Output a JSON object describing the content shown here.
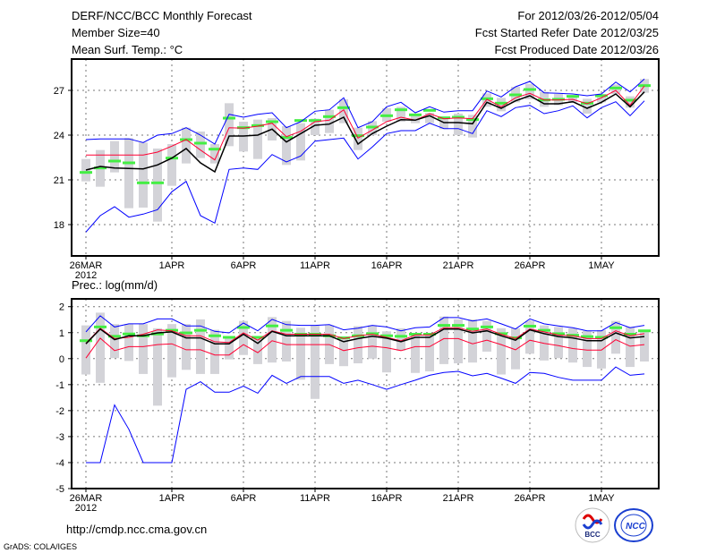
{
  "header": {
    "title": "DERF/NCC/BCC Monthly Forecast",
    "member_size": "Member Size=40",
    "variable": "Mean Surf. Temp.: °C",
    "period": "For 2012/03/26-2012/05/04",
    "started": "Fcst Started Refer Date 2012/03/25",
    "produced": "Fcst Produced Date 2012/03/26"
  },
  "footer": {
    "url": "http://cmdp.ncc.cma.gov.cn",
    "credit": "GrADS: COLA/IGES",
    "logo_bcc": "BCC",
    "logo_ncc": "NCC"
  },
  "colors": {
    "envelope": "#0000ff",
    "mean_band": "#ff0033",
    "ensemble_mean": "#000000",
    "median": "#44ee44",
    "range_bar": "#d3d3d8"
  },
  "chart_data": [
    {
      "type": "line",
      "title": "Mean Surf. Temp.: °C",
      "ylabel": "°C",
      "x_start": "2012-03-26",
      "days": 40,
      "xlim": [
        -1,
        40
      ],
      "ylim": [
        15.9,
        29.1
      ],
      "yticks": [
        18,
        21,
        24,
        27
      ],
      "xticks": [
        {
          "day": 0,
          "label": "26MAR",
          "sub": "2012"
        },
        {
          "day": 6,
          "label": "1APR"
        },
        {
          "day": 11,
          "label": "6APR"
        },
        {
          "day": 16,
          "label": "11APR"
        },
        {
          "day": 21,
          "label": "16APR"
        },
        {
          "day": 26,
          "label": "21APR"
        },
        {
          "day": 31,
          "label": "26APR"
        },
        {
          "day": 36,
          "label": "1MAY"
        }
      ],
      "grid": true,
      "series": [
        {
          "name": "range_high",
          "values": [
            22.4,
            23.0,
            23.6,
            23.8,
            23.5,
            23.1,
            23.4,
            24.5,
            24.24,
            23.4,
            26.14,
            24.9,
            25.04,
            25.14,
            24.6,
            24.8,
            25.1,
            25.7,
            26.4,
            24.5,
            24.94,
            25.8,
            25.9,
            25.44,
            25.5,
            25.2,
            25.44,
            25.36,
            26.8,
            26.5,
            27.24,
            27.44,
            26.9,
            26.76,
            26.6,
            26.44,
            26.76,
            27.4,
            26.6,
            27.76
          ]
        },
        {
          "name": "range_low",
          "values": [
            20.9,
            20.54,
            21.5,
            19.1,
            19.14,
            18.2,
            20.6,
            22.1,
            22.46,
            22.1,
            23.26,
            22.9,
            22.4,
            23.64,
            22.0,
            22.3,
            24.0,
            24.14,
            24.8,
            23.0,
            24.0,
            24.9,
            24.9,
            24.8,
            24.8,
            24.4,
            24.0,
            23.84,
            25.9,
            25.6,
            26.2,
            26.4,
            25.9,
            26.0,
            26.2,
            25.44,
            26.2,
            26.76,
            25.84,
            26.84
          ]
        },
        {
          "name": "blue_upper",
          "values": [
            23.7,
            23.75,
            23.75,
            23.75,
            23.5,
            24.0,
            24.1,
            24.5,
            24.0,
            23.4,
            25.4,
            25.2,
            25.4,
            25.5,
            24.5,
            24.9,
            25.6,
            25.7,
            26.5,
            24.5,
            24.9,
            25.9,
            26.2,
            25.5,
            25.9,
            25.54,
            25.64,
            25.64,
            26.96,
            26.56,
            27.24,
            27.6,
            26.84,
            26.8,
            26.76,
            26.64,
            26.76,
            27.56,
            26.9,
            27.76
          ]
        },
        {
          "name": "blue_lower",
          "values": [
            17.5,
            18.6,
            19.2,
            18.5,
            18.7,
            19.0,
            20.2,
            20.9,
            18.6,
            18.1,
            21.7,
            21.8,
            21.7,
            22.7,
            22.2,
            22.6,
            23.6,
            23.7,
            23.8,
            22.4,
            23.2,
            24.1,
            24.3,
            24.3,
            24.8,
            24.44,
            24.44,
            24.1,
            25.64,
            25.24,
            25.84,
            26.0,
            25.44,
            25.64,
            25.96,
            25.16,
            25.84,
            26.24,
            25.3,
            26.3
          ]
        },
        {
          "name": "red",
          "values": [
            22.66,
            22.66,
            22.66,
            22.66,
            22.66,
            22.86,
            23.26,
            23.7,
            23.0,
            22.34,
            24.5,
            24.46,
            24.6,
            24.8,
            23.9,
            24.26,
            24.9,
            25.0,
            25.7,
            23.8,
            24.34,
            24.9,
            25.2,
            25.0,
            25.44,
            25.1,
            25.16,
            25.1,
            26.4,
            25.9,
            26.5,
            26.8,
            26.36,
            26.36,
            26.4,
            26.1,
            26.5,
            27.0,
            26.0,
            27.3
          ]
        },
        {
          "name": "black",
          "values": [
            21.66,
            21.9,
            21.8,
            21.76,
            21.74,
            22.0,
            22.46,
            23.1,
            22.14,
            21.54,
            23.94,
            23.94,
            24.0,
            24.4,
            23.54,
            24.1,
            24.66,
            24.74,
            25.2,
            23.4,
            24.1,
            24.6,
            25.04,
            25.0,
            25.3,
            24.84,
            24.84,
            24.76,
            26.2,
            25.8,
            26.3,
            26.64,
            26.1,
            26.1,
            26.24,
            25.8,
            26.2,
            26.76,
            25.9,
            26.9
          ]
        },
        {
          "name": "green",
          "values": [
            21.5,
            21.8,
            22.26,
            22.14,
            20.8,
            20.8,
            22.46,
            23.7,
            23.46,
            23.06,
            25.14,
            24.5,
            24.64,
            24.9,
            23.84,
            24.98,
            24.98,
            25.24,
            25.84,
            23.96,
            24.54,
            25.3,
            25.7,
            25.36,
            25.66,
            25.16,
            25.2,
            25.04,
            26.44,
            26.14,
            26.7,
            27.06,
            26.36,
            26.4,
            26.6,
            26.14,
            26.64,
            27.16,
            26.34,
            27.32
          ]
        }
      ]
    },
    {
      "type": "line",
      "title": "Prec.: log(mm/d)",
      "ylabel": "log(mm/d)",
      "x_start": "2012-03-26",
      "days": 40,
      "xlim": [
        -1,
        40
      ],
      "ylim": [
        -5,
        2.3
      ],
      "yticks": [
        -5,
        -4,
        -3,
        -2,
        -1,
        0,
        1,
        2
      ],
      "xticks": [
        {
          "day": 0,
          "label": "26MAR",
          "sub": "2012"
        },
        {
          "day": 6,
          "label": "1APR"
        },
        {
          "day": 11,
          "label": "6APR"
        },
        {
          "day": 16,
          "label": "11APR"
        },
        {
          "day": 21,
          "label": "16APR"
        },
        {
          "day": 26,
          "label": "21APR"
        },
        {
          "day": 31,
          "label": "26APR"
        },
        {
          "day": 36,
          "label": "1MAY"
        }
      ],
      "grid": true,
      "series": [
        {
          "name": "range_high",
          "values": [
            1.28,
            1.77,
            1.33,
            1.33,
            1.33,
            1.17,
            1.33,
            1.33,
            1.51,
            1.11,
            0.82,
            1.45,
            0.82,
            1.6,
            1.45,
            1.19,
            1.28,
            1.28,
            0.77,
            1.25,
            1.28,
            1.05,
            1.17,
            0.99,
            0.99,
            1.62,
            1.51,
            1.51,
            1.45,
            1.17,
            1.17,
            1.45,
            1.28,
            1.22,
            1.17,
            1.07,
            1.1,
            1.45,
            1.22,
            1.11
          ]
        },
        {
          "name": "range_low",
          "values": [
            -0.61,
            -0.93,
            0.02,
            -0.09,
            -0.59,
            -1.81,
            -0.72,
            -0.43,
            -0.59,
            -0.59,
            -0.03,
            0.14,
            -0.21,
            -0.15,
            -0.11,
            -0.81,
            -1.55,
            -0.21,
            -0.29,
            -0.18,
            0,
            -0.53,
            0.31,
            -0.55,
            -0.49,
            -0.21,
            -0.18,
            -0.15,
            0.27,
            -0.61,
            -0.41,
            0.19,
            -0.07,
            0.02,
            -0.15,
            -0.32,
            -0.38,
            0.19,
            -0.32,
            -0.11
          ]
        },
        {
          "name": "blue_upper",
          "values": [
            1.03,
            1.65,
            1.22,
            1.34,
            1.34,
            1.53,
            1.53,
            1.26,
            1.26,
            1.05,
            0.99,
            1.37,
            1.07,
            1.51,
            1.31,
            1.28,
            1.28,
            1.31,
            1.11,
            1.17,
            1.28,
            1.22,
            1.07,
            1.19,
            1.22,
            1.58,
            1.58,
            1.45,
            1.53,
            1.34,
            1.14,
            1.53,
            1.34,
            1.26,
            1.19,
            1.07,
            1.07,
            1.39,
            1.19,
            1.28
          ]
        },
        {
          "name": "blue_lower",
          "values": [
            -4,
            -4,
            -1.78,
            -2.72,
            -4,
            -4,
            -4,
            -1.18,
            -0.89,
            -1.29,
            -1.29,
            -1.06,
            -1.33,
            -0.64,
            -0.95,
            -0.69,
            -0.69,
            -0.69,
            -0.95,
            -0.83,
            -1.0,
            -1.18,
            -1.0,
            -0.83,
            -0.64,
            -0.53,
            -0.49,
            -0.66,
            -0.57,
            -0.75,
            -0.95,
            -0.53,
            -0.57,
            -0.72,
            -0.83,
            -0.83,
            -0.83,
            -0.32,
            -0.64,
            -0.59
          ]
        },
        {
          "name": "red_upper",
          "values": [
            0.59,
            1.17,
            0.77,
            0.82,
            0.94,
            1.11,
            1.07,
            0.88,
            0.88,
            0.65,
            0.62,
            0.99,
            0.71,
            1.07,
            0.94,
            0.94,
            0.94,
            0.94,
            0.77,
            0.88,
            0.94,
            0.82,
            0.69,
            0.91,
            0.91,
            1.19,
            1.19,
            1.05,
            1.14,
            0.94,
            0.77,
            1.14,
            1.03,
            0.91,
            0.88,
            0.77,
            0.77,
            1.07,
            0.88,
            0.96
          ]
        },
        {
          "name": "red_lower",
          "values": [
            0.02,
            0.79,
            0.31,
            0.46,
            0.46,
            0.54,
            0.57,
            0.34,
            0.34,
            0.14,
            0.14,
            0.54,
            0.23,
            0.69,
            0.54,
            0.54,
            0.54,
            0.54,
            0.31,
            0.42,
            0.48,
            0.42,
            0.31,
            0.46,
            0.46,
            0.77,
            0.77,
            0.57,
            0.71,
            0.54,
            0.34,
            0.71,
            0.59,
            0.5,
            0.39,
            0.33,
            0.33,
            0.73,
            0.48,
            0.54
          ]
        },
        {
          "name": "black",
          "values": [
            0.57,
            1.14,
            0.73,
            0.88,
            0.88,
            0.99,
            1.03,
            0.8,
            0.8,
            0.57,
            0.57,
            0.94,
            0.59,
            1.05,
            0.88,
            0.88,
            0.88,
            0.88,
            0.65,
            0.77,
            0.86,
            0.79,
            0.65,
            0.82,
            0.82,
            1.14,
            1.14,
            0.99,
            1.07,
            0.88,
            0.71,
            1.11,
            0.96,
            0.85,
            0.8,
            0.69,
            0.69,
            0.99,
            0.8,
            0.85
          ]
        },
        {
          "name": "green",
          "values": [
            0.69,
            1.22,
            0.86,
            0.95,
            0.88,
            0.95,
            1.09,
            0.99,
            1.09,
            0.88,
            0.82,
            1.2,
            0.82,
            1.26,
            1.09,
            0.94,
            0.94,
            0.88,
            0.8,
            0.88,
            0.96,
            0.88,
            0.86,
            0.94,
            0.94,
            1.28,
            1.28,
            1.14,
            1.22,
            0.96,
            0.8,
            1.25,
            1.09,
            0.96,
            0.9,
            0.85,
            0.82,
            1.19,
            0.94,
            1.07
          ]
        }
      ]
    }
  ]
}
